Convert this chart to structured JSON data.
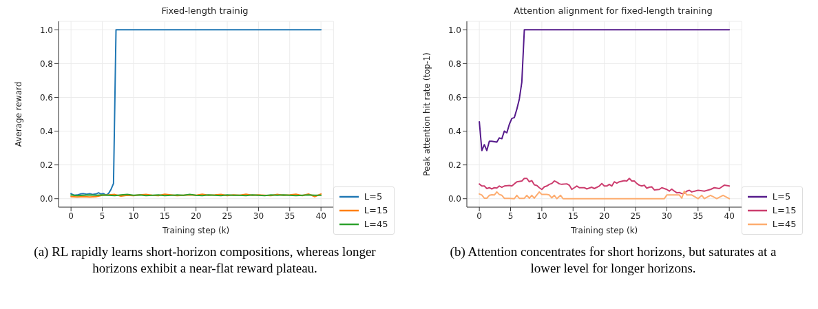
{
  "chart_data": [
    {
      "type": "line",
      "title": "Fixed-length trainig",
      "xlabel": "Training step (k)",
      "ylabel": "Average reward",
      "xlim": [
        -2,
        42
      ],
      "ylim": [
        -0.05,
        1.05
      ],
      "xticks": [
        0,
        5,
        10,
        15,
        20,
        25,
        30,
        35,
        40
      ],
      "yticks": [
        {
          "value": 0,
          "label": "0.0"
        },
        {
          "value": 0.2,
          "label": "0.2"
        },
        {
          "value": 0.4,
          "label": "0.4"
        },
        {
          "value": 0.6,
          "label": "0.6"
        },
        {
          "value": 0.8,
          "label": "0.8"
        },
        {
          "value": 1,
          "label": "1.0"
        }
      ],
      "grid": true,
      "legend": "bottom right",
      "line_style": "solid",
      "annotations": [
        "(a) RL rapidly learns short-horizon compositions, whereas longer horizons exhibit a near-flat reward plateau."
      ],
      "series": [
        {
          "name": "L=5",
          "color": "#1f77b4",
          "x": [
            0,
            0.5,
            1,
            1.5,
            2,
            2.5,
            3,
            3.5,
            4,
            4.4,
            4.8,
            5.2,
            5.6,
            6,
            6.4,
            6.8,
            7.2,
            40
          ],
          "values": [
            0.03,
            0.02,
            0.022,
            0.028,
            0.03,
            0.026,
            0.03,
            0.025,
            0.028,
            0.035,
            0.028,
            0.03,
            0.022,
            0.03,
            0.055,
            0.09,
            1,
            1
          ]
        },
        {
          "name": "L=15",
          "color": "#ff7f0e",
          "x": [
            0,
            1,
            2,
            3,
            4,
            5,
            6,
            7,
            8,
            9,
            10,
            11,
            12,
            13,
            14,
            15,
            16,
            17,
            18,
            19,
            20,
            21,
            22,
            23,
            24,
            25,
            26,
            27,
            28,
            29,
            30,
            31,
            32,
            33,
            34,
            35,
            36,
            37,
            38,
            39,
            40
          ],
          "values": [
            0.012,
            0.01,
            0.012,
            0.01,
            0.012,
            0.02,
            0.022,
            0.025,
            0.015,
            0.02,
            0.018,
            0.022,
            0.025,
            0.02,
            0.018,
            0.026,
            0.022,
            0.018,
            0.02,
            0.022,
            0.02,
            0.026,
            0.02,
            0.022,
            0.025,
            0.018,
            0.022,
            0.02,
            0.026,
            0.02,
            0.022,
            0.02,
            0.018,
            0.025,
            0.02,
            0.022,
            0.026,
            0.018,
            0.028,
            0.012,
            0.028
          ]
        },
        {
          "name": "L=45",
          "color": "#2ca02c",
          "x": [
            0,
            1,
            2,
            3,
            4,
            5,
            6,
            7,
            8,
            9,
            10,
            11,
            12,
            13,
            14,
            15,
            16,
            17,
            18,
            19,
            20,
            21,
            22,
            23,
            24,
            25,
            26,
            27,
            28,
            29,
            30,
            31,
            32,
            33,
            34,
            35,
            36,
            37,
            38,
            39,
            40
          ],
          "values": [
            0.022,
            0.018,
            0.02,
            0.022,
            0.02,
            0.022,
            0.02,
            0.018,
            0.022,
            0.025,
            0.02,
            0.022,
            0.018,
            0.02,
            0.022,
            0.018,
            0.02,
            0.022,
            0.02,
            0.025,
            0.02,
            0.018,
            0.022,
            0.02,
            0.018,
            0.022,
            0.02,
            0.02,
            0.018,
            0.022,
            0.02,
            0.018,
            0.022,
            0.02,
            0.022,
            0.02,
            0.018,
            0.02,
            0.022,
            0.02,
            0.02
          ]
        }
      ]
    },
    {
      "type": "line",
      "title": "Attention alignment for fixed-length training",
      "xlabel": "Training step (k)",
      "ylabel": "Peak attention hit rate (top-1)",
      "xlim": [
        -2,
        42
      ],
      "ylim": [
        -0.05,
        1.05
      ],
      "xticks": [
        0,
        5,
        10,
        15,
        20,
        25,
        30,
        35,
        40
      ],
      "yticks": [
        {
          "value": 0,
          "label": "0.0"
        },
        {
          "value": 0.2,
          "label": "0.2"
        },
        {
          "value": 0.4,
          "label": "0.4"
        },
        {
          "value": 0.6,
          "label": "0.6"
        },
        {
          "value": 0.8,
          "label": "0.8"
        },
        {
          "value": 1,
          "label": "1.0"
        }
      ],
      "grid": true,
      "legend": "bottom right",
      "line_style": "solid",
      "annotations": [
        "(b) Attention concentrates for short horizons, but saturates at a lower level for longer horizons."
      ],
      "series": [
        {
          "name": "L=5",
          "color": "#551a8b",
          "x": [
            0,
            0.4,
            0.8,
            1.2,
            1.6,
            2,
            2.8,
            3.2,
            3.6,
            4,
            4.4,
            4.8,
            5.2,
            5.6,
            6,
            6.4,
            6.8,
            7.2,
            40
          ],
          "values": [
            0.455,
            0.285,
            0.32,
            0.285,
            0.34,
            0.34,
            0.335,
            0.36,
            0.355,
            0.4,
            0.39,
            0.44,
            0.475,
            0.48,
            0.53,
            0.59,
            0.69,
            1,
            1
          ]
        },
        {
          "name": "L=15",
          "color": "#cc3d6e",
          "x": [
            0,
            0.4,
            0.8,
            1.2,
            1.6,
            2,
            2.4,
            2.8,
            3.2,
            3.6,
            4,
            4.8,
            5.2,
            5.6,
            6,
            6.8,
            7.2,
            7.6,
            8,
            8.4,
            8.8,
            9.2,
            9.6,
            10,
            10.4,
            10.8,
            11.2,
            11.6,
            12,
            12.4,
            12.8,
            13.2,
            14,
            14.4,
            14.8,
            15.2,
            15.6,
            16,
            16.8,
            17.2,
            18,
            18.4,
            19.2,
            19.6,
            20,
            20.4,
            20.8,
            21.2,
            21.6,
            22,
            22.4,
            23.2,
            23.6,
            24,
            24.4,
            24.8,
            25.2,
            25.6,
            26,
            26.4,
            26.8,
            27.2,
            27.6,
            28,
            28.8,
            29.2,
            30,
            30.4,
            30.8,
            31.2,
            31.6,
            32,
            32.4,
            32.8,
            33.2,
            33.6,
            34,
            35,
            36,
            37,
            37.6,
            38.4,
            39.2,
            40
          ],
          "values": [
            0.087,
            0.075,
            0.075,
            0.06,
            0.065,
            0.058,
            0.065,
            0.063,
            0.075,
            0.068,
            0.075,
            0.078,
            0.075,
            0.088,
            0.1,
            0.105,
            0.12,
            0.12,
            0.1,
            0.107,
            0.082,
            0.078,
            0.065,
            0.055,
            0.07,
            0.075,
            0.085,
            0.09,
            0.105,
            0.098,
            0.088,
            0.085,
            0.088,
            0.08,
            0.055,
            0.065,
            0.075,
            0.065,
            0.065,
            0.058,
            0.068,
            0.06,
            0.075,
            0.09,
            0.075,
            0.075,
            0.085,
            0.075,
            0.1,
            0.092,
            0.1,
            0.107,
            0.105,
            0.12,
            0.105,
            0.105,
            0.09,
            0.08,
            0.075,
            0.08,
            0.062,
            0.068,
            0.07,
            0.052,
            0.055,
            0.065,
            0.055,
            0.045,
            0.057,
            0.045,
            0.035,
            0.037,
            0.03,
            0.032,
            0.045,
            0.05,
            0.04,
            0.05,
            0.045,
            0.055,
            0.065,
            0.06,
            0.08,
            0.075
          ]
        },
        {
          "name": "L=45",
          "color": "#fdac6f",
          "x": [
            0,
            0.4,
            0.8,
            1.2,
            1.6,
            2,
            2.4,
            2.8,
            3.2,
            3.6,
            4,
            4.8,
            5.6,
            6,
            6.4,
            7.2,
            7.6,
            8,
            8.4,
            8.8,
            9.6,
            10,
            10.8,
            11.2,
            11.6,
            12,
            12.4,
            13,
            13.4,
            29.6,
            30,
            32,
            32.4,
            32.8,
            33.2,
            34,
            35,
            35.6,
            36,
            37,
            38,
            39,
            40
          ],
          "values": [
            0.028,
            0.022,
            0.003,
            0.003,
            0.02,
            0.023,
            0.022,
            0.04,
            0.025,
            0.02,
            0.002,
            0.002,
            0,
            0.02,
            0.002,
            0.002,
            0.02,
            0.003,
            0.02,
            0.003,
            0.04,
            0.025,
            0.025,
            0.022,
            0.005,
            0.02,
            0,
            0.02,
            0,
            0,
            0.022,
            0.022,
            0.003,
            0.045,
            0.022,
            0.022,
            0,
            0.02,
            0,
            0.02,
            0,
            0.02,
            0
          ]
        }
      ]
    }
  ]
}
